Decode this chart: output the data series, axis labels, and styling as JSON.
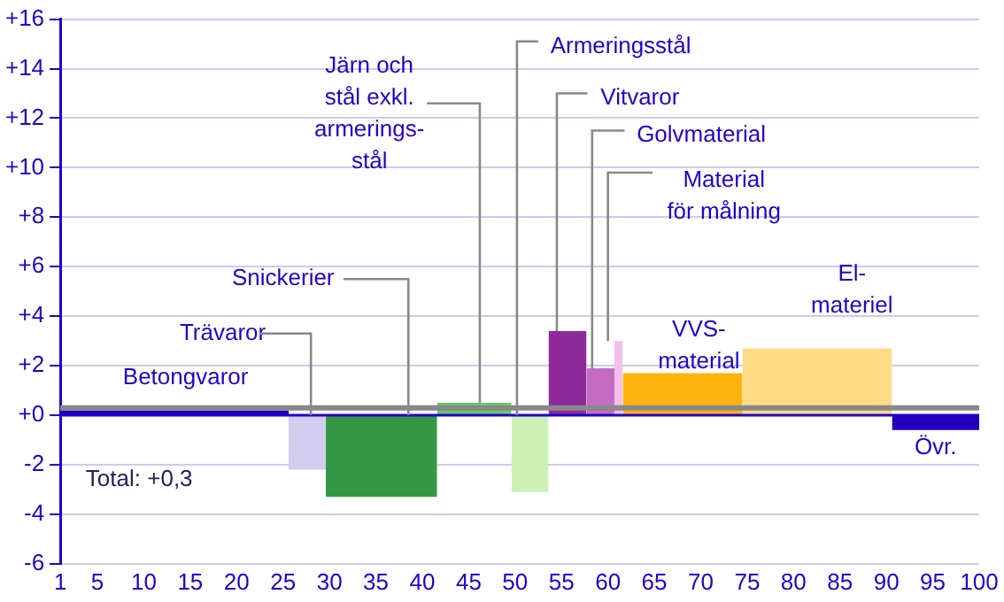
{
  "chart_data": {
    "type": "area",
    "xlim": [
      1,
      100
    ],
    "xticks": [
      1,
      5,
      10,
      15,
      20,
      25,
      30,
      35,
      40,
      45,
      50,
      55,
      60,
      65,
      70,
      75,
      80,
      85,
      90,
      95,
      100
    ],
    "ylim": [
      -6,
      16
    ],
    "yticks": [
      {
        "value": -6,
        "label": "-6"
      },
      {
        "value": -4,
        "label": "-4"
      },
      {
        "value": -2,
        "label": "-2"
      },
      {
        "value": 0,
        "label": "+0"
      },
      {
        "value": 2,
        "label": "+2"
      },
      {
        "value": 4,
        "label": "+4"
      },
      {
        "value": 6,
        "label": "+6"
      },
      {
        "value": 8,
        "label": "+8"
      },
      {
        "value": 10,
        "label": "+10"
      },
      {
        "value": 12,
        "label": "+12"
      },
      {
        "value": 14,
        "label": "+14"
      },
      {
        "value": 16,
        "label": "+16"
      }
    ],
    "grid": "y",
    "legend": false,
    "marker": "none",
    "ref_lines": [
      {
        "axis": "y",
        "value": 0,
        "label": null,
        "color": "#2200cc"
      },
      {
        "axis": "y",
        "value": 0.3,
        "label": "Total: +0,3",
        "color": "#888888"
      }
    ],
    "series": [
      {
        "name": "Betongvaror",
        "color": "#2200bb",
        "x": [
          1,
          25.6
        ],
        "values": [
          0.2,
          0.2
        ]
      },
      {
        "name": "Trävaror",
        "color": "#d2ccef",
        "x": [
          25.6,
          29.6
        ],
        "values": [
          -2.2,
          -2.2
        ]
      },
      {
        "name": "Snickerier",
        "color": "#339944",
        "x": [
          29.6,
          41.6
        ],
        "values": [
          -3.3,
          -3.3
        ]
      },
      {
        "name": "Järn och stål exkl. armerings-stål",
        "color": "#66cc66",
        "x": [
          41.6,
          49.6
        ],
        "values": [
          0.5,
          0.5
        ]
      },
      {
        "name": "Armeringsstål",
        "color": "#cdf0b5",
        "x": [
          49.6,
          53.6
        ],
        "values": [
          -3.1,
          -3.1
        ]
      },
      {
        "name": "Vitvaror",
        "color": "#8e2a9c",
        "x": [
          53.6,
          57.7
        ],
        "values": [
          3.4,
          3.4
        ]
      },
      {
        "name": "Golvmaterial",
        "color": "#c46cc4",
        "x": [
          57.7,
          60.7
        ],
        "values": [
          1.9,
          1.9
        ]
      },
      {
        "name": "Material för målning",
        "color": "#f0c0e8",
        "x": [
          60.7,
          61.6
        ],
        "values": [
          3.0,
          3.0
        ]
      },
      {
        "name": "VVS-material",
        "color": "#ffb30f",
        "x": [
          61.6,
          74.5
        ],
        "values": [
          1.7,
          1.7
        ]
      },
      {
        "name": "El-materiel",
        "color": "#ffdc85",
        "x": [
          74.5,
          90.6
        ],
        "values": [
          2.7,
          2.7
        ]
      },
      {
        "name": "Övr.",
        "color": "#2200bb",
        "x": [
          90.6,
          100
        ],
        "values": [
          -0.6,
          -0.6
        ]
      }
    ]
  }
}
